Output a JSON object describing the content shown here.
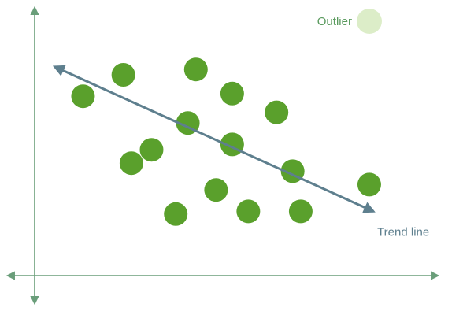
{
  "chart_data": {
    "type": "scatter",
    "title": "",
    "xlabel": "",
    "ylabel": "",
    "xlim": [
      0,
      100
    ],
    "ylim": [
      0,
      100
    ],
    "grid": false,
    "legend": "top-right",
    "series": [
      {
        "name": "",
        "color": "#5aa02c",
        "points": [
          {
            "x": 12,
            "y": 67
          },
          {
            "x": 22,
            "y": 75
          },
          {
            "x": 24,
            "y": 42
          },
          {
            "x": 29,
            "y": 47
          },
          {
            "x": 35,
            "y": 23
          },
          {
            "x": 38,
            "y": 57
          },
          {
            "x": 40,
            "y": 77
          },
          {
            "x": 45,
            "y": 32
          },
          {
            "x": 49,
            "y": 68
          },
          {
            "x": 49,
            "y": 49
          },
          {
            "x": 53,
            "y": 24
          },
          {
            "x": 60,
            "y": 61
          },
          {
            "x": 64,
            "y": 39
          },
          {
            "x": 66,
            "y": 24
          },
          {
            "x": 83,
            "y": 34
          }
        ]
      }
    ],
    "annotations": {
      "outlier": {
        "label": "Outlier",
        "x": 83,
        "y": 95,
        "color": "#dcedc8"
      },
      "trend_line": {
        "label": "Trend line",
        "from": {
          "x": 5,
          "y": 78
        },
        "to": {
          "x": 84,
          "y": 24
        },
        "color": "#5e7f8e"
      }
    },
    "axis_color": "#6a9e7a"
  }
}
